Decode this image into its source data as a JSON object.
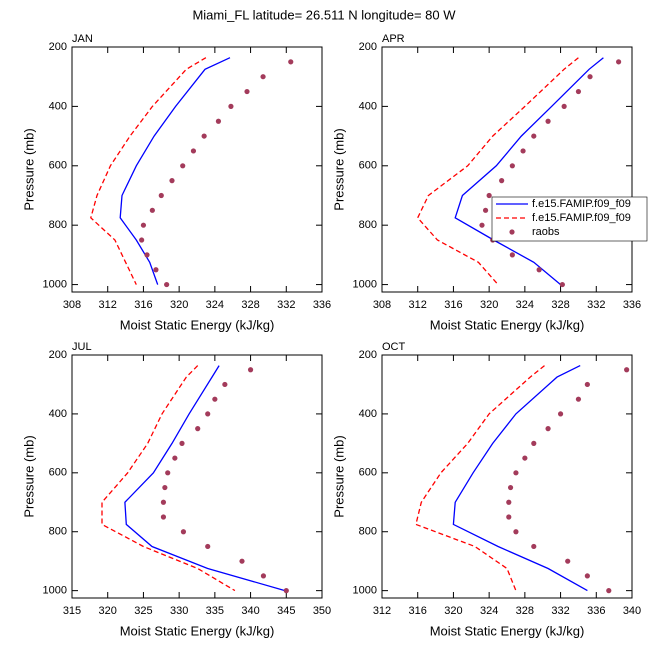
{
  "title": "Miami_FL  latitude= 26.511 N longitude= 80 W",
  "chart_data": [
    {
      "type": "line",
      "title": "JAN",
      "xlabel": "Moist Static Energy (kJ/kg)",
      "ylabel": "Pressure (mb)",
      "xlim": [
        308,
        336
      ],
      "xticks": [
        308,
        312,
        316,
        320,
        324,
        328,
        332,
        336
      ],
      "ylim": [
        200,
        1025
      ],
      "yticks": [
        200,
        400,
        600,
        800,
        1000
      ],
      "y_inverted": true,
      "series": [
        {
          "color": "#0000ff",
          "style": "solid",
          "y": [
            236,
            275,
            400,
            500,
            600,
            700,
            775,
            850,
            925,
            1000
          ],
          "x": [
            325.7,
            322.9,
            319.6,
            317.2,
            315.2,
            313.6,
            313.4,
            315.2,
            316.7,
            317.6
          ]
        },
        {
          "color": "#ff0000",
          "style": "dashed",
          "y": [
            236,
            275,
            400,
            500,
            600,
            700,
            775,
            850,
            925,
            1000
          ],
          "x": [
            323.0,
            320.8,
            317.0,
            314.5,
            312.3,
            310.8,
            310.1,
            312.8,
            314.0,
            315.2
          ]
        },
        {
          "color": "#a33b5b",
          "style": "markers",
          "y": [
            250,
            300,
            350,
            400,
            450,
            500,
            550,
            600,
            650,
            700,
            750,
            800,
            850,
            900,
            950,
            1000
          ],
          "x": [
            332.5,
            329.4,
            327.6,
            325.8,
            324.4,
            322.8,
            321.6,
            320.4,
            319.2,
            318.0,
            317.0,
            316.0,
            315.8,
            316.4,
            317.4,
            318.6
          ]
        }
      ]
    },
    {
      "type": "line",
      "title": "APR",
      "xlabel": "Moist Static Energy (kJ/kg)",
      "ylabel": "Pressure (mb)",
      "xlim": [
        308,
        336
      ],
      "xticks": [
        308,
        312,
        316,
        320,
        324,
        328,
        332,
        336
      ],
      "ylim": [
        200,
        1025
      ],
      "yticks": [
        200,
        400,
        600,
        800,
        1000
      ],
      "y_inverted": true,
      "legend": "right",
      "series": [
        {
          "name": "f.e15.FAMIP.f09_f09",
          "color": "#0000ff",
          "style": "solid",
          "y": [
            236,
            275,
            400,
            500,
            600,
            700,
            775,
            850,
            925,
            1000
          ],
          "x": [
            332.8,
            331.2,
            327.0,
            323.6,
            320.8,
            317.0,
            316.2,
            320.5,
            325.0,
            328.0
          ]
        },
        {
          "name": "f.e15.FAMIP.f09_f09",
          "color": "#ff0000",
          "style": "dashed",
          "y": [
            236,
            275,
            400,
            500,
            600,
            700,
            775,
            850,
            925,
            1000
          ],
          "x": [
            330.0,
            328.4,
            324.0,
            320.4,
            317.6,
            313.2,
            312.0,
            314.2,
            318.8,
            321.0
          ]
        },
        {
          "name": "raobs",
          "color": "#a33b5b",
          "style": "markers",
          "y": [
            250,
            300,
            350,
            400,
            450,
            500,
            550,
            600,
            650,
            700,
            750,
            800,
            850,
            900,
            950,
            1000
          ],
          "x": [
            334.5,
            331.3,
            330.0,
            328.4,
            326.6,
            325.0,
            323.8,
            322.6,
            321.4,
            320.0,
            319.6,
            319.2,
            320.4,
            322.6,
            325.6,
            328.2
          ]
        }
      ]
    },
    {
      "type": "line",
      "title": "JUL",
      "xlabel": "Moist Static Energy (kJ/kg)",
      "ylabel": "Pressure (mb)",
      "xlim": [
        315,
        350
      ],
      "xticks": [
        315,
        320,
        325,
        330,
        335,
        340,
        345,
        350
      ],
      "ylim": [
        200,
        1025
      ],
      "yticks": [
        200,
        400,
        600,
        800,
        1000
      ],
      "y_inverted": true,
      "series": [
        {
          "color": "#0000ff",
          "style": "solid",
          "y": [
            236,
            275,
            400,
            500,
            600,
            700,
            775,
            850,
            925,
            1000
          ],
          "x": [
            335.6,
            334.6,
            331.4,
            329.0,
            326.4,
            322.4,
            322.6,
            326.2,
            334.0,
            344.8
          ]
        },
        {
          "color": "#ff0000",
          "style": "dashed",
          "y": [
            236,
            275,
            400,
            500,
            600,
            700,
            775,
            850,
            925,
            1000
          ],
          "x": [
            332.6,
            331.0,
            327.6,
            325.6,
            322.8,
            319.2,
            319.2,
            325.0,
            332.6,
            337.8
          ]
        },
        {
          "color": "#a33b5b",
          "style": "markers",
          "y": [
            250,
            300,
            350,
            400,
            450,
            500,
            550,
            600,
            650,
            700,
            750,
            800,
            850,
            900,
            950,
            1000
          ],
          "x": [
            340.0,
            336.4,
            335.0,
            334.0,
            332.6,
            330.4,
            329.4,
            328.4,
            328.0,
            327.8,
            327.8,
            330.6,
            334.0,
            338.8,
            341.8,
            345.0
          ]
        }
      ]
    },
    {
      "type": "line",
      "title": "OCT",
      "xlabel": "Moist Static Energy (kJ/kg)",
      "ylabel": "Pressure (mb)",
      "xlim": [
        312,
        340
      ],
      "xticks": [
        312,
        316,
        320,
        324,
        328,
        332,
        336,
        340
      ],
      "ylim": [
        200,
        1025
      ],
      "yticks": [
        200,
        400,
        600,
        800,
        1000
      ],
      "y_inverted": true,
      "series": [
        {
          "color": "#0000ff",
          "style": "solid",
          "y": [
            236,
            275,
            400,
            500,
            600,
            700,
            775,
            850,
            925,
            1000
          ],
          "x": [
            334.2,
            331.6,
            327.0,
            324.4,
            322.2,
            320.2,
            320.0,
            325.0,
            330.6,
            335.0
          ]
        },
        {
          "color": "#ff0000",
          "style": "dashed",
          "y": [
            236,
            275,
            400,
            500,
            600,
            700,
            775,
            850,
            925,
            1000
          ],
          "x": [
            330.2,
            328.6,
            324.0,
            321.6,
            318.6,
            316.4,
            315.8,
            322.4,
            326.0,
            327.0
          ]
        },
        {
          "color": "#a33b5b",
          "style": "markers",
          "y": [
            250,
            300,
            350,
            400,
            450,
            500,
            550,
            600,
            650,
            700,
            750,
            800,
            850,
            900,
            950,
            1000
          ],
          "x": [
            339.4,
            335.0,
            334.0,
            332.0,
            330.6,
            329.0,
            328.0,
            327.0,
            326.4,
            326.2,
            326.2,
            327.0,
            329.0,
            332.8,
            335.0,
            337.4
          ]
        }
      ]
    }
  ]
}
